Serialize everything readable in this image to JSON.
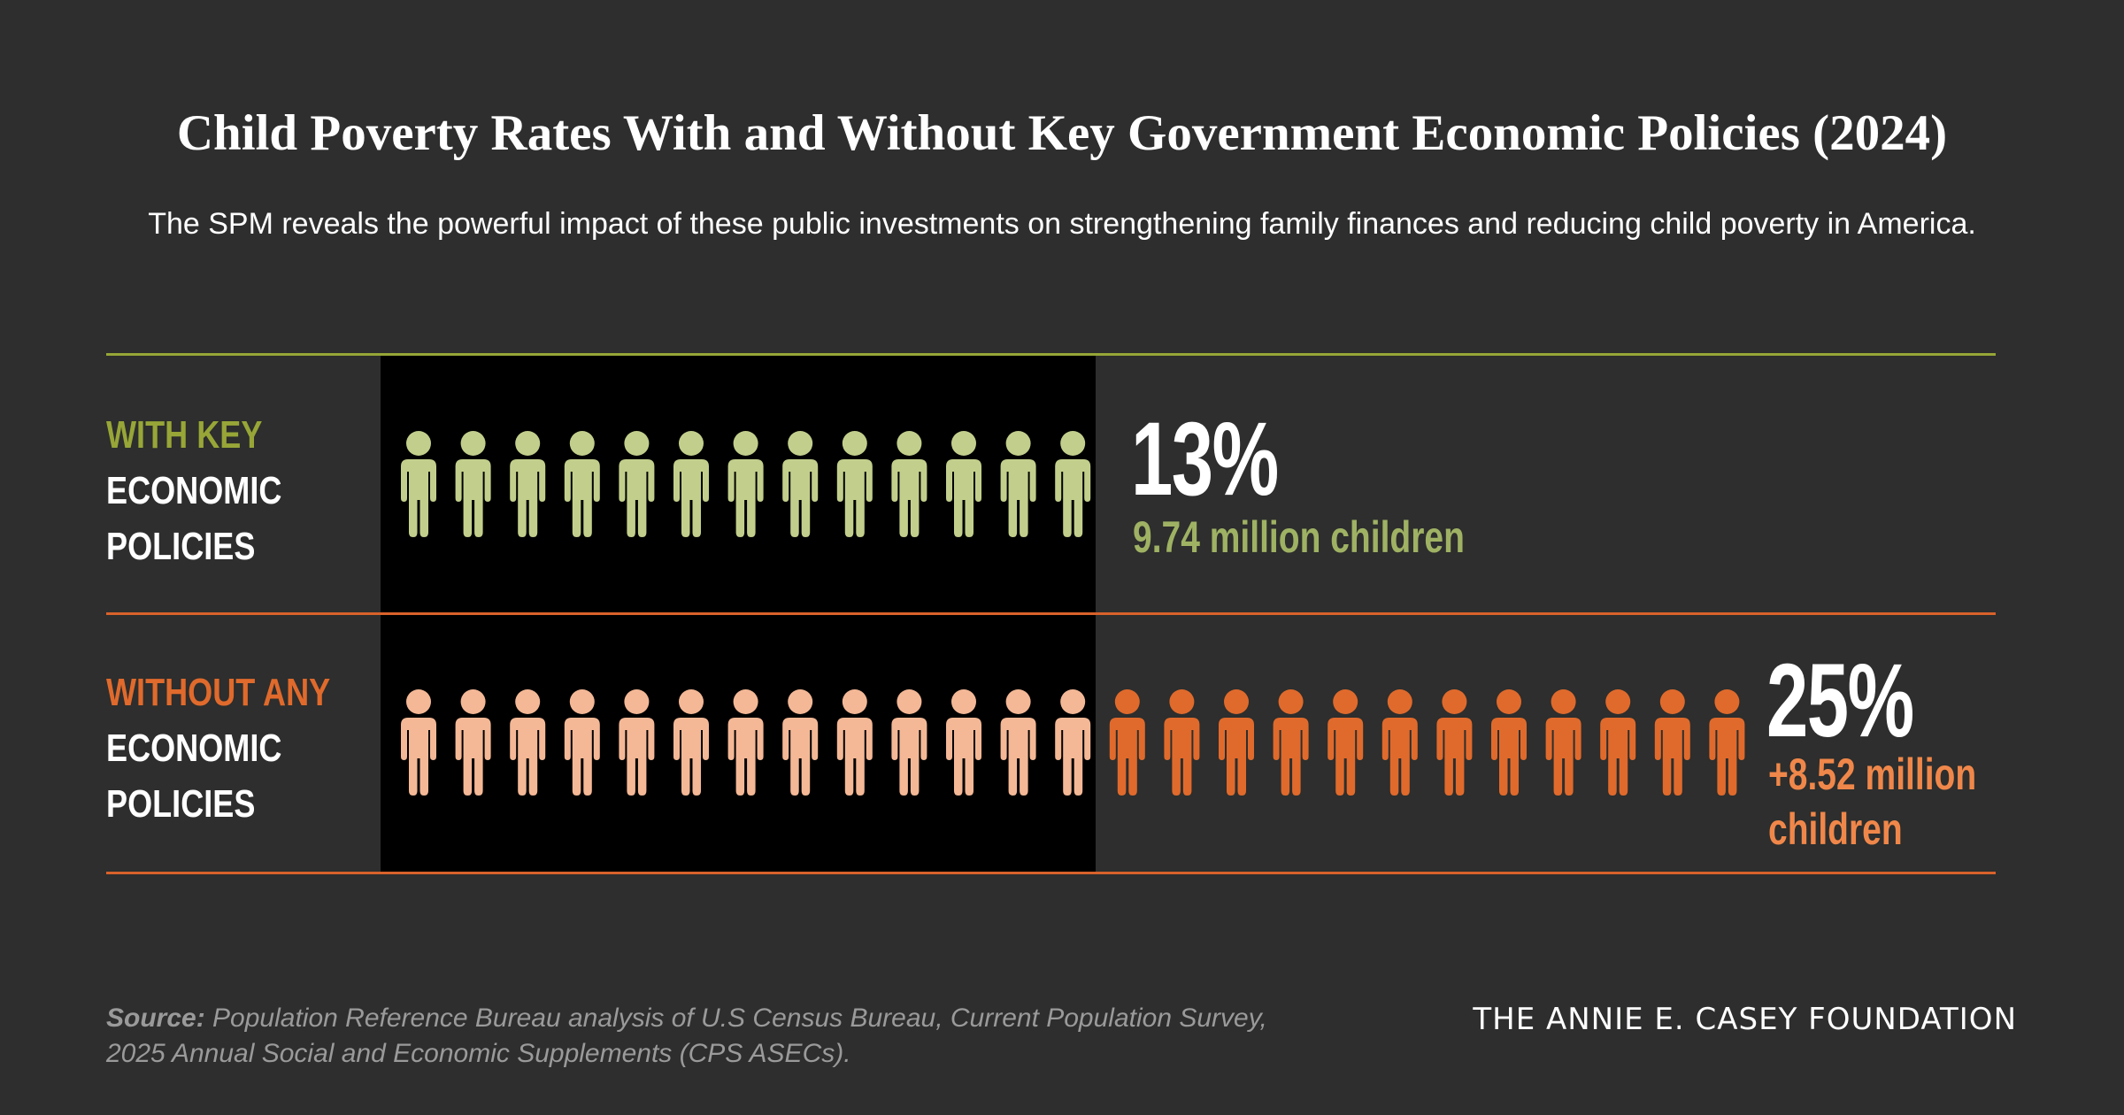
{
  "title": "Child Poverty Rates With and Without Key Government Economic Policies (2024)",
  "subtitle": "The SPM reveals the powerful impact of these public investments on strengthening family finances and reducing child poverty in America.",
  "rows": [
    {
      "label_accent": "WITH KEY",
      "label_line2": "ECONOMIC",
      "label_line3": "POLICIES",
      "percent": "13%",
      "count_text": "9.74 million children"
    },
    {
      "label_accent": "WITHOUT ANY",
      "label_line2": "ECONOMIC",
      "label_line3": "POLICIES",
      "percent": "25%",
      "count_text": "+8.52 million children"
    }
  ],
  "chart_data": {
    "type": "bar",
    "categories": [
      "WITH KEY ECONOMIC POLICIES",
      "WITHOUT ANY ECONOMIC POLICIES"
    ],
    "series": [
      {
        "values": [
          13,
          13
        ]
      },
      {
        "values": [
          0,
          12
        ]
      }
    ],
    "values": [
      13,
      25
    ],
    "children_millions": [
      9.74,
      8.52
    ],
    "unit_icon": "person-icon",
    "colors": {
      "with_policies": "#c2cf8c",
      "without_base": "#f4b896",
      "without_added": "#e06a2c",
      "accent_green": "#97a637",
      "accent_orange": "#e06a2c",
      "background": "#2d2e2d",
      "panel": "#000000"
    }
  },
  "footer": {
    "source_label": "Source:",
    "source_text": "Population Reference Bureau analysis of U.S Census Bureau, Current Population Survey, 2025 Annual Social and Economic Supplements (CPS ASECs).",
    "foundation": "THE ANNIE E. CASEY FOUNDATION"
  }
}
